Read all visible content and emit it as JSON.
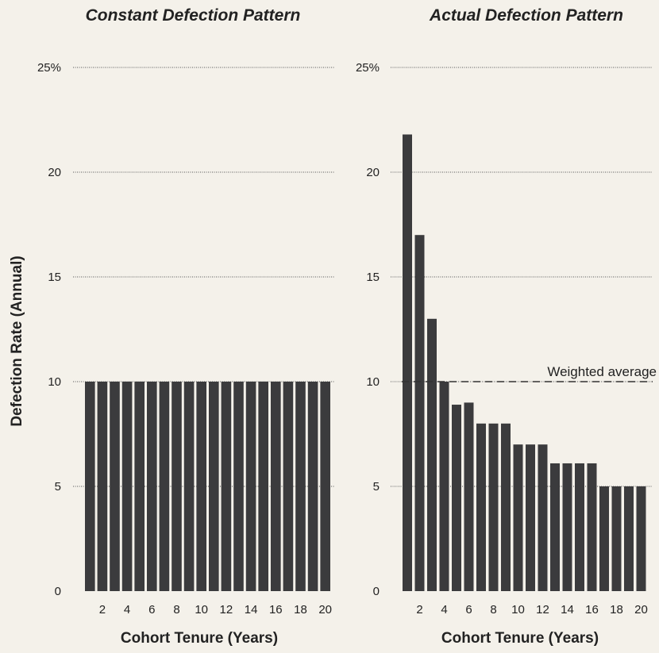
{
  "ylabel": "Defection Rate (Annual)",
  "chart_data": [
    {
      "type": "bar",
      "title": "Constant Defection Pattern",
      "xlabel": "Cohort Tenure (Years)",
      "ylim": [
        0,
        25
      ],
      "yticks": [
        0,
        5,
        10,
        15,
        20,
        25
      ],
      "ytick_labels": [
        "0",
        "5",
        "10",
        "15",
        "20",
        "25%"
      ],
      "grid": true,
      "categories": [
        1,
        2,
        3,
        4,
        5,
        6,
        7,
        8,
        9,
        10,
        11,
        12,
        13,
        14,
        15,
        16,
        17,
        18,
        19,
        20
      ],
      "xtick_labels": [
        "2",
        "4",
        "6",
        "8",
        "10",
        "12",
        "14",
        "16",
        "18",
        "20"
      ],
      "values": [
        10,
        10,
        10,
        10,
        10,
        10,
        10,
        10,
        10,
        10,
        10,
        10,
        10,
        10,
        10,
        10,
        10,
        10,
        10,
        10
      ]
    },
    {
      "type": "bar",
      "title": "Actual Defection Pattern",
      "xlabel": "Cohort Tenure (Years)",
      "ylim": [
        0,
        25
      ],
      "yticks": [
        0,
        5,
        10,
        15,
        20,
        25
      ],
      "ytick_labels": [
        "0",
        "5",
        "10",
        "15",
        "20",
        "25%"
      ],
      "grid": true,
      "categories": [
        1,
        2,
        3,
        4,
        5,
        6,
        7,
        8,
        9,
        10,
        11,
        12,
        13,
        14,
        15,
        16,
        17,
        18,
        19,
        20
      ],
      "xtick_labels": [
        "2",
        "4",
        "6",
        "8",
        "10",
        "12",
        "14",
        "16",
        "18",
        "20"
      ],
      "values": [
        21.8,
        17,
        13,
        10,
        8.9,
        9,
        8,
        8,
        8,
        7,
        7,
        7,
        6.1,
        6.1,
        6.1,
        6.1,
        5,
        5,
        5,
        5
      ],
      "reference_line": {
        "label": "Weighted average",
        "value": 10
      }
    }
  ]
}
